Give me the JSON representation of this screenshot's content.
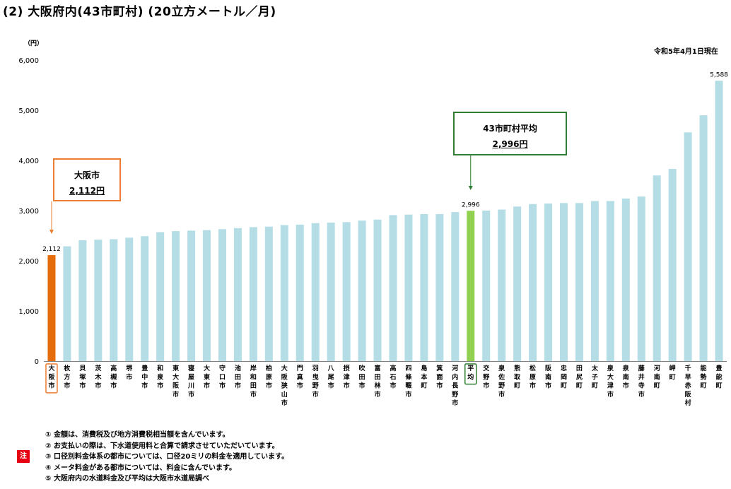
{
  "title": "(2) 大阪府内(43市町村) (20立方メートル／月)",
  "date_note": "令和5年4月1日現在",
  "unit_label": "（円）",
  "callouts": {
    "osaka": {
      "name": "大阪市",
      "value": "2,112円"
    },
    "average": {
      "name": "43市町村平均",
      "value": "2,996円"
    }
  },
  "note_badge": "注",
  "notes": [
    "① 金額は、消費税及び地方消費税相当額を含んでいます。",
    "② お支払いの際は、下水道使用料と合算で請求させていただいています。",
    "③ 口径別料金体系の都市については、口径20ミリの料金を適用しています。",
    "④ メータ料金がある都市については、料金に含んでいます。",
    "⑤ 大阪府内の水道料金及び平均は大阪市水道局調べ"
  ],
  "colors": {
    "default": "#b4dde6",
    "osaka": "#e46c0a",
    "average": "#92d050",
    "osaka_outline": "#ed7d31",
    "average_outline": "#2e7d32"
  },
  "chart_data": {
    "type": "bar",
    "ylim": [
      0,
      6000
    ],
    "yticks": [
      "0",
      "1,000",
      "2,000",
      "3,000",
      "4,000",
      "5,000",
      "6,000"
    ],
    "ytick_values": [
      0,
      1000,
      2000,
      3000,
      4000,
      5000,
      6000
    ],
    "categories": [
      "大阪市",
      "枚方市",
      "貝塚市",
      "茨木市",
      "高槻市",
      "堺市",
      "豊中市",
      "和泉市",
      "東大阪市",
      "寝屋川市",
      "大東市",
      "守口市",
      "池田市",
      "岸和田市",
      "柏原市",
      "大阪狭山市",
      "門真市",
      "羽曳野市",
      "八尾市",
      "摂津市",
      "吹田市",
      "富田林市",
      "高石市",
      "四條畷市",
      "島本町",
      "箕面市",
      "河内長野市",
      "平均",
      "交野市",
      "泉佐野市",
      "熊取町",
      "松原市",
      "阪南市",
      "忠岡町",
      "田尻町",
      "太子町",
      "泉大津市",
      "泉南市",
      "藤井寺市",
      "河南町",
      "岬町",
      "千早赤阪村",
      "能勢町",
      "豊能町"
    ],
    "values": [
      2112,
      2288,
      2410,
      2420,
      2430,
      2460,
      2490,
      2570,
      2590,
      2600,
      2610,
      2630,
      2650,
      2670,
      2680,
      2710,
      2720,
      2750,
      2760,
      2770,
      2800,
      2820,
      2910,
      2920,
      2930,
      2930,
      2970,
      2996,
      3000,
      3020,
      3080,
      3130,
      3140,
      3150,
      3150,
      3190,
      3190,
      3240,
      3280,
      3700,
      3830,
      4560,
      4900,
      5588
    ],
    "highlight": {
      "osaka": 0,
      "average": 27
    },
    "data_labels": [
      {
        "index": 0,
        "text": "2,112"
      },
      {
        "index": 27,
        "text": "2,996"
      },
      {
        "index": 43,
        "text": "5,588"
      }
    ]
  }
}
